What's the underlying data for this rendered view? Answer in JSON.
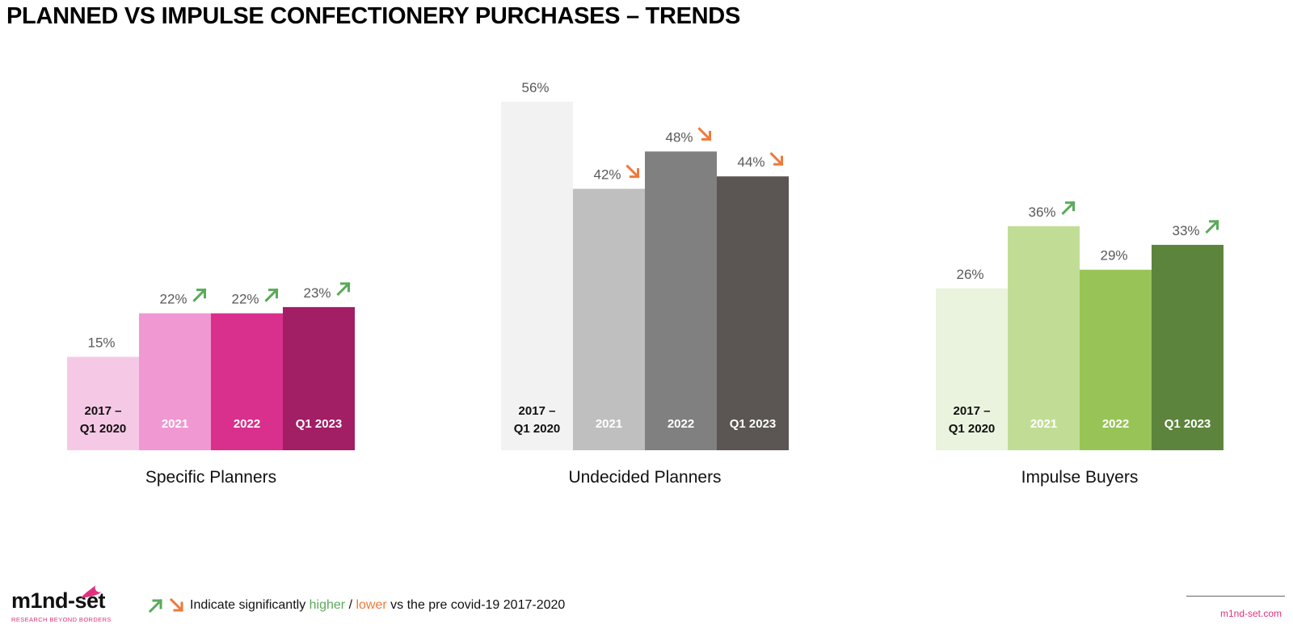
{
  "title": "PLANNED VS IMPULSE CONFECTIONERY PURCHASES – TRENDS",
  "chart_data": {
    "type": "bar",
    "categories": [
      "2017 –\nQ1 2020",
      "2021",
      "2022",
      "Q1 2023"
    ],
    "series": [
      {
        "name": "Specific Planners",
        "values": [
          15,
          22,
          22,
          23
        ],
        "value_labels": [
          "15%",
          "22%",
          "22%",
          "23%"
        ],
        "significance": [
          "none",
          "higher",
          "higher",
          "higher"
        ],
        "colors": [
          "#f5c9e6",
          "#f098d2",
          "#d9308d",
          "#a21e65"
        ]
      },
      {
        "name": "Undecided Planners",
        "values": [
          56,
          42,
          48,
          44
        ],
        "value_labels": [
          "56%",
          "42%",
          "48%",
          "44%"
        ],
        "significance": [
          "none",
          "lower",
          "lower",
          "lower"
        ],
        "colors": [
          "#f2f2f2",
          "#bfbfbf",
          "#808080",
          "#5b5653"
        ]
      },
      {
        "name": "Impulse Buyers",
        "values": [
          26,
          36,
          29,
          33
        ],
        "value_labels": [
          "26%",
          "36%",
          "29%",
          "33%"
        ],
        "significance": [
          "none",
          "higher",
          "none",
          "higher"
        ],
        "colors": [
          "#eaf3dd",
          "#c1dd95",
          "#98c356",
          "#5c843c"
        ]
      }
    ],
    "category_label_colors": [
      "#111111",
      "#ffffff",
      "#ffffff",
      "#ffffff"
    ],
    "ylim": [
      0,
      56
    ],
    "grid": false,
    "legend": "bottom-left"
  },
  "colors": {
    "higher_arrow": "#5aaa5a",
    "lower_arrow": "#ee7a3a",
    "brand": "#e0317f"
  },
  "legend": {
    "icons": [
      "up-arrow-icon",
      "down-arrow-icon"
    ],
    "prefix": "Indicate significantly ",
    "higher": "higher",
    "separator": " / ",
    "lower": "lower",
    "suffix": " vs the pre covid-19 2017-2020"
  },
  "logo": {
    "text": "m1nd-set",
    "tagline": "RESEARCH BEYOND BORDERS"
  },
  "footer": {
    "url": "m1nd-set.com"
  }
}
